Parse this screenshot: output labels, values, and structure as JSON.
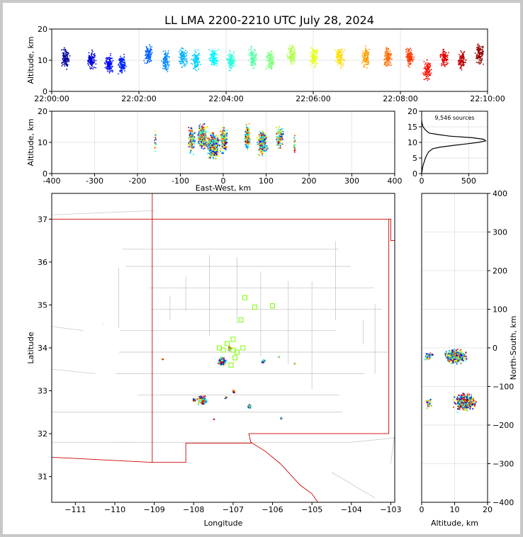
{
  "title": "LL LMA 2200-2210 UTC July 28, 2024",
  "chart_data": [
    {
      "name": "time-altitude",
      "type": "scatter",
      "ylabel": "Altitude, km",
      "xlim_minutes": [
        0,
        10
      ],
      "ylim": [
        0,
        20
      ],
      "xticks": [
        "22:00:00",
        "22:02:00",
        "22:04:00",
        "22:06:00",
        "22:08:00",
        "22:10:00"
      ],
      "yticks": [
        0,
        10,
        20
      ],
      "clusters": [
        {
          "t": 0.3,
          "a": 11
        },
        {
          "t": 0.9,
          "a": 10
        },
        {
          "t": 1.3,
          "a": 9
        },
        {
          "t": 1.6,
          "a": 9
        },
        {
          "t": 2.2,
          "a": 12
        },
        {
          "t": 2.6,
          "a": 10
        },
        {
          "t": 3.0,
          "a": 11
        },
        {
          "t": 3.3,
          "a": 10
        },
        {
          "t": 3.7,
          "a": 11
        },
        {
          "t": 4.1,
          "a": 10
        },
        {
          "t": 4.6,
          "a": 11
        },
        {
          "t": 5.0,
          "a": 10
        },
        {
          "t": 5.5,
          "a": 12
        },
        {
          "t": 6.0,
          "a": 11
        },
        {
          "t": 6.6,
          "a": 11
        },
        {
          "t": 7.2,
          "a": 11
        },
        {
          "t": 7.7,
          "a": 11
        },
        {
          "t": 8.2,
          "a": 11
        },
        {
          "t": 8.6,
          "a": 7
        },
        {
          "t": 9.0,
          "a": 11
        },
        {
          "t": 9.4,
          "a": 10
        },
        {
          "t": 9.8,
          "a": 12
        }
      ]
    },
    {
      "name": "east-west-altitude",
      "type": "scatter",
      "xlabel": "East-West, km",
      "ylabel": "Altitude, km",
      "xlim": [
        -400,
        400
      ],
      "ylim": [
        0,
        20
      ],
      "xticks": [
        -400,
        -300,
        -200,
        -100,
        0,
        100,
        200,
        300,
        400
      ],
      "yticks": [
        0,
        10,
        20
      ],
      "clusters": [
        {
          "x": -160,
          "a": 11,
          "w": 4,
          "n": 18
        },
        {
          "x": -75,
          "a": 11,
          "w": 10,
          "n": 140
        },
        {
          "x": -50,
          "a": 12,
          "w": 14,
          "n": 260
        },
        {
          "x": -25,
          "a": 9,
          "w": 18,
          "n": 420
        },
        {
          "x": 0,
          "a": 11,
          "w": 10,
          "n": 160
        },
        {
          "x": 55,
          "a": 12,
          "w": 8,
          "n": 180
        },
        {
          "x": 90,
          "a": 10,
          "w": 14,
          "n": 300
        },
        {
          "x": 130,
          "a": 12,
          "w": 10,
          "n": 120
        },
        {
          "x": 165,
          "a": 10,
          "w": 4,
          "n": 20
        }
      ]
    },
    {
      "name": "altitude-histogram",
      "type": "line",
      "annotation": "9,546 sources",
      "xlim": [
        0,
        700
      ],
      "ylim": [
        0,
        20
      ],
      "xticks": [
        0,
        500
      ],
      "yticks": [
        0,
        5,
        10,
        15,
        20
      ],
      "profile": [
        [
          0,
          0
        ],
        [
          1,
          5
        ],
        [
          2,
          10
        ],
        [
          3,
          18
        ],
        [
          4,
          30
        ],
        [
          5,
          40
        ],
        [
          6,
          55
        ],
        [
          7,
          75
        ],
        [
          8,
          120
        ],
        [
          8.5,
          200
        ],
        [
          9,
          330
        ],
        [
          9.5,
          470
        ],
        [
          10,
          600
        ],
        [
          10.5,
          680
        ],
        [
          11,
          660
        ],
        [
          11.5,
          540
        ],
        [
          12,
          300
        ],
        [
          12.5,
          180
        ],
        [
          13,
          80
        ],
        [
          14,
          40
        ],
        [
          15,
          15
        ],
        [
          16,
          5
        ],
        [
          17,
          0
        ]
      ]
    },
    {
      "name": "plan-view",
      "type": "scatter",
      "xlabel": "Longitude",
      "ylabel": "Latitude",
      "xlim": [
        -111.6,
        -102.9
      ],
      "ylim": [
        30.4,
        37.6
      ],
      "xticks": [
        -111,
        -110,
        -109,
        -108,
        -107,
        -106,
        -105,
        -104,
        -103
      ],
      "yticks": [
        31,
        32,
        33,
        34,
        35,
        36,
        37
      ],
      "stations": [
        [
          -106.7,
          35.17
        ],
        [
          -106.45,
          34.95
        ],
        [
          -106.0,
          34.98
        ],
        [
          -106.8,
          34.65
        ],
        [
          -107.0,
          34.2
        ],
        [
          -107.15,
          34.1
        ],
        [
          -107.35,
          34.0
        ],
        [
          -106.75,
          34.0
        ],
        [
          -107.0,
          33.95
        ],
        [
          -107.25,
          33.95
        ],
        [
          -106.95,
          33.77
        ],
        [
          -107.05,
          33.6
        ],
        [
          -106.9,
          33.9
        ]
      ],
      "clusters": [
        {
          "lon": -107.3,
          "lat": 33.7,
          "w": 0.12,
          "n": 220
        },
        {
          "lon": -107.1,
          "lat": 34.0,
          "w": 0.06,
          "n": 40
        },
        {
          "lon": -108.8,
          "lat": 33.75,
          "w": 0.02,
          "n": 6
        },
        {
          "lon": -107.8,
          "lat": 32.8,
          "w": 0.16,
          "n": 140
        },
        {
          "lon": -108.0,
          "lat": 32.8,
          "w": 0.04,
          "n": 30
        },
        {
          "lon": -107.0,
          "lat": 33.0,
          "w": 0.04,
          "n": 20
        },
        {
          "lon": -106.6,
          "lat": 32.65,
          "w": 0.05,
          "n": 80
        },
        {
          "lon": -106.25,
          "lat": 33.7,
          "w": 0.05,
          "n": 60
        },
        {
          "lon": -105.85,
          "lat": 33.8,
          "w": 0.02,
          "n": 10
        },
        {
          "lon": -105.45,
          "lat": 33.65,
          "w": 0.02,
          "n": 10
        },
        {
          "lon": -105.8,
          "lat": 32.38,
          "w": 0.04,
          "n": 10
        },
        {
          "lon": -107.2,
          "lat": 32.85,
          "w": 0.03,
          "n": 14
        },
        {
          "lon": -107.5,
          "lat": 32.35,
          "w": 0.02,
          "n": 6
        }
      ]
    },
    {
      "name": "altitude-north-south",
      "type": "scatter",
      "xlabel": "Altitude, km",
      "ylabel": "North-South, km",
      "xlim": [
        0,
        20
      ],
      "ylim": [
        -400,
        400
      ],
      "xticks": [
        0,
        10,
        20
      ],
      "yticks": [
        -400,
        -300,
        -200,
        -100,
        0,
        100,
        200,
        300,
        400
      ],
      "clusters": [
        {
          "a": 10,
          "y": -20,
          "wa": 4,
          "wy": 22,
          "n": 520
        },
        {
          "a": 13,
          "y": -140,
          "wa": 4,
          "wy": 28,
          "n": 520
        },
        {
          "a": 2,
          "y": -20,
          "wa": 2,
          "wy": 14,
          "n": 40
        },
        {
          "a": 2,
          "y": -140,
          "wa": 1.5,
          "wy": 20,
          "n": 30
        }
      ]
    }
  ]
}
